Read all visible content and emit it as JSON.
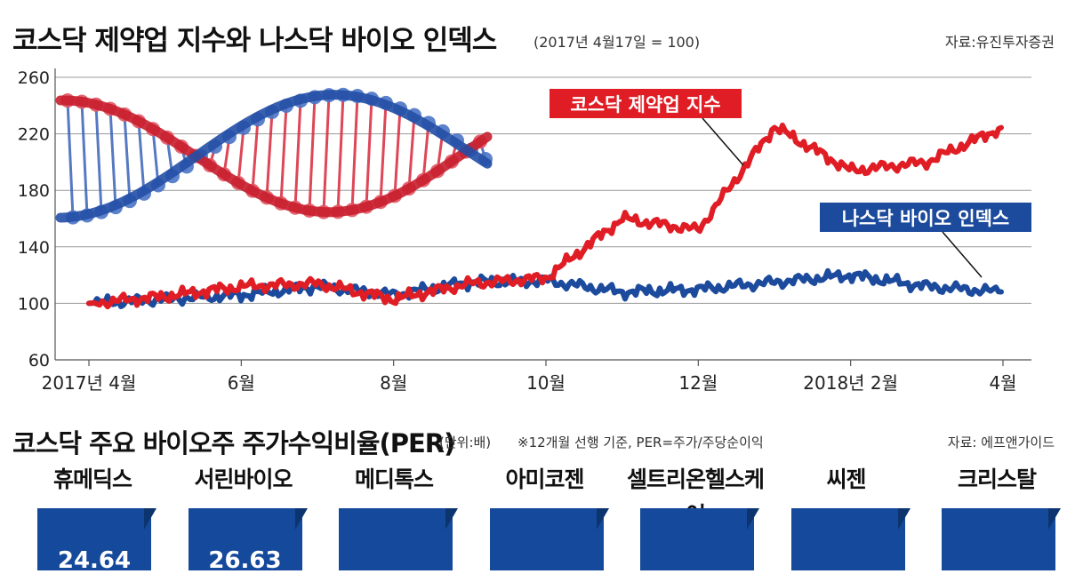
{
  "header1": {
    "title": "코스닥 제약업 지수와 나스닥 바이오 인덱스",
    "base_note": "(2017년 4월17일 = 100)",
    "source": "자료:유진투자증권"
  },
  "chart_data": [
    {
      "type": "line",
      "title": "코스닥 제약업 지수와 나스닥 바이오 인덱스",
      "subtitle": "(2017년 4월17일 = 100)",
      "ylim": [
        60,
        260
      ],
      "y_ticks": [
        "260",
        "220",
        "180",
        "140",
        "100",
        "60"
      ],
      "x_tick_labels": [
        "2017년 4월",
        "6월",
        "8월",
        "10월",
        "12월",
        "2018년 2월",
        "4월"
      ],
      "x": [
        "2017-04",
        "2017-05",
        "2017-06",
        "2017-07",
        "2017-08",
        "2017-09",
        "2017-10",
        "2017-11",
        "2017-12",
        "2018-01",
        "2018-02",
        "2018-03",
        "2018-04"
      ],
      "series": [
        {
          "name": "코스닥 제약업 지수",
          "color": "#e01d25",
          "values": [
            100,
            105,
            112,
            114,
            103,
            114,
            118,
            160,
            152,
            225,
            194,
            200,
            225
          ]
        },
        {
          "name": "나스닥 바이오 인덱스",
          "color": "#1c4a9c",
          "values": [
            100,
            103,
            106,
            112,
            106,
            115,
            116,
            108,
            110,
            115,
            120,
            112,
            108
          ]
        }
      ],
      "grid": true,
      "illustration": "dna-helix-icon"
    }
  ],
  "header2": {
    "title": "코스닥 주요 바이오주 주가수익비율(PER)",
    "unit": "(단위:배)",
    "note": "※12개월 선행 기준, PER=주가/주당순이익",
    "source": "자료: 에프앤가이드"
  },
  "per_companies": [
    {
      "name": "휴메딕스",
      "value": "24.64"
    },
    {
      "name": "서린바이오",
      "value": "26.63"
    },
    {
      "name": "메디톡스",
      "value": ""
    },
    {
      "name": "아미코젠",
      "value": ""
    },
    {
      "name": "셀트리온헬스케어",
      "value": ""
    },
    {
      "name": "씨젠",
      "value": ""
    },
    {
      "name": "크리스탈",
      "value": ""
    }
  ],
  "colors": {
    "red": "#e01d25",
    "blue": "#1c4a9c",
    "box": "#15499b"
  }
}
